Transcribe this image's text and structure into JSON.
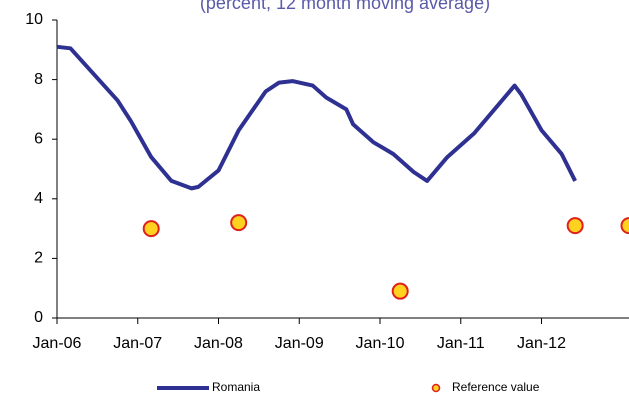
{
  "chart_data": {
    "type": "line",
    "subtitle": "(percent, 12 month moving average)",
    "xlim": [
      "2006-01",
      "2013-02"
    ],
    "xticks": [
      {
        "value": "2006-01",
        "label": "Jan-06"
      },
      {
        "value": "2007-01",
        "label": "Jan-07"
      },
      {
        "value": "2008-01",
        "label": "Jan-08"
      },
      {
        "value": "2009-01",
        "label": "Jan-09"
      },
      {
        "value": "2010-01",
        "label": "Jan-10"
      },
      {
        "value": "2011-01",
        "label": "Jan-11"
      },
      {
        "value": "2012-01",
        "label": "Jan-12"
      }
    ],
    "ylim": [
      0,
      10
    ],
    "yticks": [
      0,
      2,
      4,
      6,
      8,
      10
    ],
    "legend": "bottom",
    "series": [
      {
        "name": "Romania",
        "type": "line",
        "color": "#2e3192",
        "x": [
          "2006-01",
          "2006-03",
          "2006-06",
          "2006-10",
          "2006-12",
          "2007-03",
          "2007-06",
          "2007-09",
          "2007-10",
          "2008-01",
          "2008-04",
          "2008-08",
          "2008-10",
          "2008-12",
          "2009-03",
          "2009-05",
          "2009-08",
          "2009-09",
          "2009-12",
          "2010-03",
          "2010-06",
          "2010-08",
          "2010-11",
          "2011-03",
          "2011-06",
          "2011-09",
          "2011-10",
          "2012-01",
          "2012-04",
          "2012-06"
        ],
        "values": [
          9.1,
          9.05,
          8.3,
          7.3,
          6.6,
          5.4,
          4.6,
          4.35,
          4.4,
          4.95,
          6.3,
          7.6,
          7.9,
          7.95,
          7.8,
          7.4,
          7.0,
          6.5,
          5.9,
          5.5,
          4.9,
          4.6,
          5.4,
          6.2,
          7.0,
          7.8,
          7.5,
          6.3,
          5.5,
          4.6
        ]
      },
      {
        "name": "Reference value",
        "type": "scatter",
        "color": "#ffd21f",
        "edge_color": "#e0201b",
        "x": [
          "2007-03",
          "2008-04",
          "2010-04",
          "2012-06",
          "2013-02"
        ],
        "values": [
          3.0,
          3.2,
          0.9,
          3.1,
          3.1
        ]
      }
    ]
  }
}
